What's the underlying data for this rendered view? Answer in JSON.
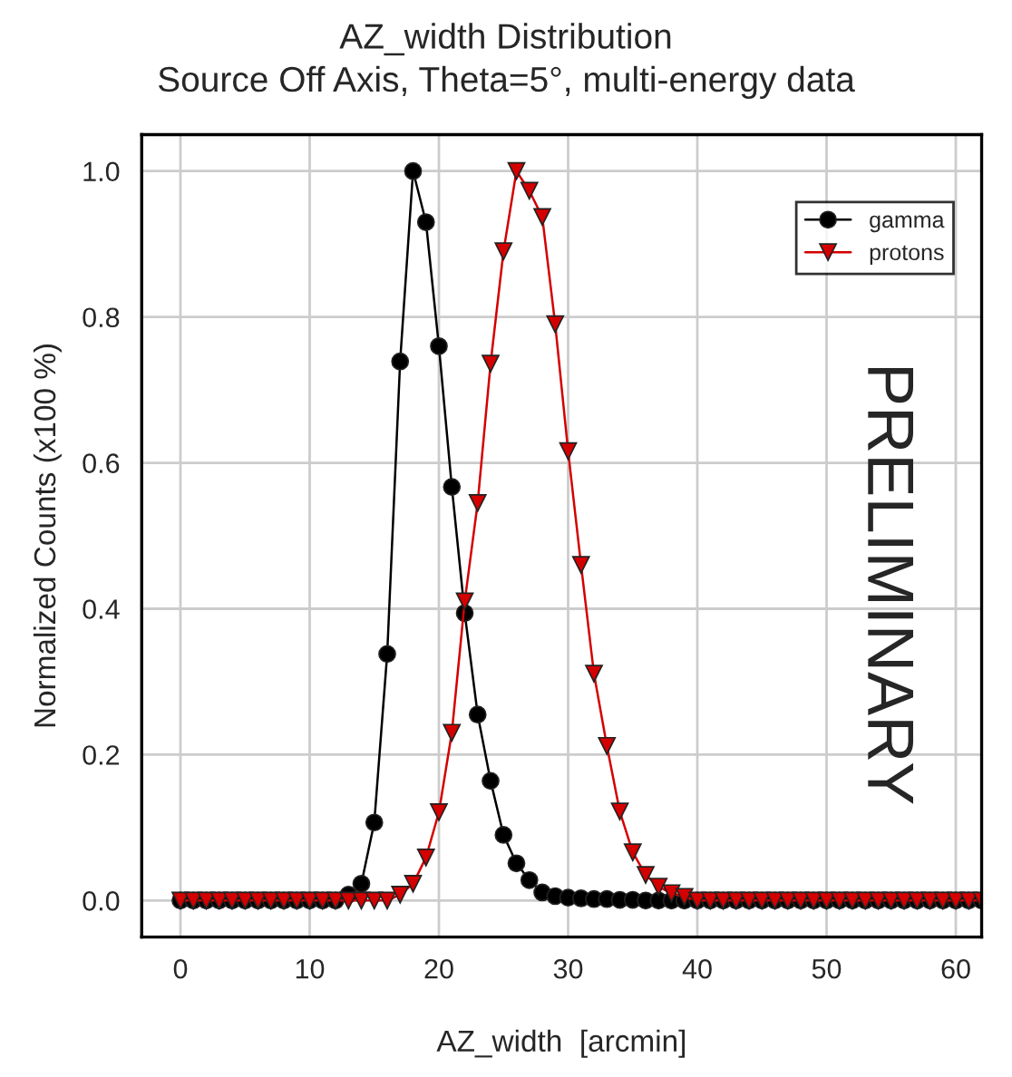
{
  "chart_data": {
    "type": "line",
    "title": "AZ_width Distribution",
    "subtitle": "Source Off Axis, Theta=5°, multi-energy data",
    "xlabel": "AZ_width  [arcmin]",
    "ylabel": "Normalized Counts (x100 %)",
    "x": [
      0,
      1,
      2,
      3,
      4,
      5,
      6,
      7,
      8,
      9,
      10,
      11,
      12,
      13,
      14,
      15,
      16,
      17,
      18,
      19,
      20,
      21,
      22,
      23,
      24,
      25,
      26,
      27,
      28,
      29,
      30,
      31,
      32,
      33,
      34,
      35,
      36,
      37,
      38,
      39,
      40,
      41,
      42,
      43,
      44,
      45,
      46,
      47,
      48,
      49,
      50,
      51,
      52,
      53,
      54,
      55,
      56,
      57,
      58,
      59,
      60,
      61,
      62
    ],
    "series": [
      {
        "name": "gamma",
        "color": "#000000",
        "marker": "circle",
        "values": [
          0,
          0,
          0,
          0,
          0,
          0,
          0,
          0,
          0,
          0,
          0,
          0,
          0,
          0.008,
          0.023,
          0.107,
          0.338,
          0.739,
          1.0,
          0.93,
          0.76,
          0.567,
          0.394,
          0.255,
          0.164,
          0.09,
          0.051,
          0.028,
          0.011,
          0.006,
          0.004,
          0.003,
          0.002,
          0.002,
          0.001,
          0.001,
          0,
          0,
          0,
          0,
          0,
          0,
          0,
          0,
          0,
          0,
          0,
          0,
          0,
          0,
          0,
          0,
          0,
          0,
          0,
          0,
          0,
          0,
          0,
          0,
          0,
          0,
          0
        ]
      },
      {
        "name": "protons",
        "color": "#d40000",
        "marker": "triangle",
        "values": [
          0,
          0,
          0,
          0,
          0,
          0,
          0,
          0,
          0,
          0,
          0,
          0,
          0,
          0,
          0,
          0,
          0,
          0.008,
          0.023,
          0.059,
          0.121,
          0.23,
          0.41,
          0.545,
          0.736,
          0.89,
          1.0,
          0.973,
          0.937,
          0.79,
          0.616,
          0.46,
          0.311,
          0.212,
          0.122,
          0.066,
          0.035,
          0.019,
          0.01,
          0.005,
          0,
          0,
          0,
          0,
          0,
          0,
          0,
          0,
          0,
          0,
          0,
          0,
          0,
          0,
          0,
          0,
          0,
          0,
          0,
          0,
          0,
          0,
          0
        ]
      }
    ],
    "xlim": [
      -3,
      62
    ],
    "xticks": [
      0,
      10,
      20,
      30,
      40,
      50,
      60
    ],
    "ylim": [
      -0.05,
      1.05
    ],
    "yticks": [
      {
        "value": 0,
        "label": "0.0"
      },
      {
        "value": 0.2,
        "label": "0.2"
      },
      {
        "value": 0.4,
        "label": "0.4"
      },
      {
        "value": 0.6,
        "label": "0.6"
      },
      {
        "value": 0.8,
        "label": "0.8"
      },
      {
        "value": 1.0,
        "label": "1.0"
      }
    ],
    "grid": true,
    "legend": "top right",
    "line_style": "solid",
    "annotations": [
      "PRELIMINARY"
    ]
  }
}
